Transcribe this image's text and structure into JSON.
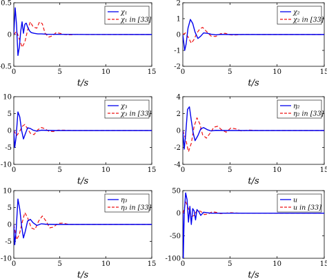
{
  "colors": {
    "proposed": "#0000ee",
    "reference": "#ee1111",
    "axis": "#000000"
  },
  "chart_data": [
    {
      "type": "line",
      "xlabel": "t/s",
      "xlim": [
        0,
        15
      ],
      "ylim": [
        -0.5,
        0.5
      ],
      "xticks": [
        0,
        5,
        10,
        15
      ],
      "yticks": [
        0.5,
        0,
        -0.5
      ],
      "x_tick_labels": [
        "0",
        "5",
        "10",
        "15"
      ],
      "y_tick_labels": [
        "0.5",
        "0",
        "-0.5"
      ],
      "legend_position": "top-right",
      "series": [
        {
          "name": "χ₁",
          "x": [
            0,
            0.15,
            0.3,
            0.45,
            0.6,
            0.75,
            0.9,
            1.05,
            1.2,
            1.35,
            1.5,
            1.7,
            1.9,
            2.2,
            2.6,
            3.0,
            3.6,
            4.5,
            6,
            8,
            15
          ],
          "y": [
            0,
            0.42,
            0.15,
            -0.33,
            -0.2,
            0.05,
            0.2,
            0.02,
            0.16,
            0.18,
            0.12,
            0.06,
            0.03,
            0.02,
            0.01,
            0.01,
            0.005,
            0.003,
            0.002,
            0.001,
            0
          ]
        },
        {
          "name": "χ₁ in [33]",
          "x": [
            0,
            0.3,
            0.6,
            0.9,
            1.2,
            1.5,
            1.8,
            2.1,
            2.5,
            2.8,
            3.1,
            3.4,
            3.8,
            4.2,
            4.6,
            5.0,
            5.5,
            6,
            7,
            8,
            15
          ],
          "y": [
            0,
            0.05,
            -0.07,
            -0.2,
            -0.12,
            0.07,
            0.2,
            0.12,
            0.1,
            0.2,
            0.17,
            0.02,
            -0.04,
            -0.02,
            0.03,
            0.02,
            0.0,
            -0.005,
            0.002,
            0,
            0
          ]
        }
      ]
    },
    {
      "type": "line",
      "xlabel": "t/s",
      "xlim": [
        0,
        15
      ],
      "ylim": [
        -2,
        2
      ],
      "xticks": [
        0,
        5,
        10,
        15
      ],
      "yticks": [
        2,
        1,
        0,
        -1,
        -2
      ],
      "x_tick_labels": [
        "0",
        "5",
        "10",
        "15"
      ],
      "y_tick_labels": [
        "2",
        "1",
        "0",
        "-1",
        "-2"
      ],
      "legend_position": "top-right",
      "series": [
        {
          "name": "χ₂",
          "x": [
            0,
            0.2,
            0.35,
            0.55,
            0.8,
            1.05,
            1.3,
            1.6,
            1.9,
            2.2,
            2.6,
            3.0,
            3.5,
            4.0,
            5,
            6,
            8,
            15
          ],
          "y": [
            0,
            -1.0,
            -0.6,
            0.4,
            0.95,
            0.7,
            0.15,
            -0.25,
            -0.1,
            0.1,
            0.08,
            0.02,
            -0.02,
            0.01,
            0,
            0,
            0,
            0
          ]
        },
        {
          "name": "χ₂ in [33]",
          "x": [
            0,
            0.3,
            0.6,
            0.9,
            1.2,
            1.5,
            1.8,
            2.1,
            2.5,
            3.0,
            3.5,
            4.0,
            4.5,
            5.0,
            5.5,
            6.5,
            8,
            15
          ],
          "y": [
            0,
            0.1,
            -0.2,
            -0.55,
            -0.3,
            0.1,
            0.35,
            0.45,
            0.2,
            -0.1,
            -0.12,
            0.05,
            0.08,
            -0.02,
            -0.03,
            0.01,
            0,
            0
          ]
        }
      ]
    },
    {
      "type": "line",
      "xlabel": "t/s",
      "xlim": [
        0,
        15
      ],
      "ylim": [
        -10,
        10
      ],
      "xticks": [
        0,
        5,
        10,
        15
      ],
      "yticks": [
        10,
        5,
        0,
        -5,
        -10
      ],
      "x_tick_labels": [
        "0",
        "5",
        "10",
        "15"
      ],
      "y_tick_labels": [
        "10",
        "5",
        "0",
        "-5",
        "-10"
      ],
      "legend_position": "top-right",
      "series": [
        {
          "name": "χ₃",
          "x": [
            0,
            0.1,
            0.25,
            0.45,
            0.65,
            0.85,
            1.05,
            1.25,
            1.5,
            1.8,
            2.1,
            2.5,
            3.0,
            3.5,
            4.5,
            6,
            8,
            15
          ],
          "y": [
            0,
            -5.0,
            -2.0,
            5.5,
            4.0,
            0.0,
            -2.5,
            -1.0,
            0.8,
            0.6,
            0.1,
            -0.2,
            0.1,
            0.05,
            0,
            0,
            0,
            0
          ]
        },
        {
          "name": "χ₃ in [33]",
          "x": [
            0,
            0.3,
            0.6,
            0.9,
            1.2,
            1.5,
            1.8,
            2.2,
            2.6,
            3.0,
            3.4,
            3.8,
            4.3,
            4.8,
            5.5,
            6.5,
            8,
            15
          ],
          "y": [
            0,
            -1.5,
            -0.5,
            1.2,
            1.8,
            0.5,
            -0.8,
            -1.2,
            0.2,
            0.9,
            0.5,
            -0.2,
            -0.3,
            0.1,
            0.1,
            0,
            0,
            0
          ]
        }
      ]
    },
    {
      "type": "line",
      "xlabel": "t/s",
      "xlim": [
        0,
        15
      ],
      "ylim": [
        -4,
        4
      ],
      "xticks": [
        0,
        5,
        10,
        15
      ],
      "yticks": [
        4,
        2,
        0,
        -2,
        -4
      ],
      "x_tick_labels": [
        "0",
        "5",
        "10",
        "15"
      ],
      "y_tick_labels": [
        "4",
        "2",
        "0",
        "-2",
        "-4"
      ],
      "legend_position": "top-right",
      "series": [
        {
          "name": "η₂",
          "x": [
            0,
            0.15,
            0.3,
            0.5,
            0.7,
            0.9,
            1.1,
            1.3,
            1.6,
            1.9,
            2.2,
            2.6,
            3.0,
            3.5,
            4.5,
            6,
            8,
            15
          ],
          "y": [
            0,
            -2.2,
            -0.5,
            2.5,
            2.8,
            1.2,
            -0.3,
            -1.2,
            -0.6,
            0.2,
            0.35,
            0.1,
            -0.05,
            0.02,
            0,
            0,
            0,
            0
          ]
        },
        {
          "name": "η₂ in [33]",
          "x": [
            0,
            0.3,
            0.6,
            0.9,
            1.2,
            1.5,
            1.8,
            2.1,
            2.5,
            2.9,
            3.3,
            3.7,
            4.1,
            4.6,
            5.1,
            5.6,
            6.2,
            7,
            8,
            15
          ],
          "y": [
            0,
            -1.0,
            -2.5,
            -1.5,
            0.5,
            1.5,
            0.8,
            -0.5,
            -0.9,
            -0.3,
            0.4,
            0.5,
            0.1,
            -0.2,
            0.3,
            0.2,
            -0.05,
            0.05,
            0,
            0
          ]
        }
      ]
    },
    {
      "type": "line",
      "xlabel": "t/s",
      "xlim": [
        0,
        15
      ],
      "ylim": [
        -10,
        10
      ],
      "xticks": [
        0,
        5,
        10,
        15
      ],
      "yticks": [
        10,
        5,
        0,
        -5,
        -10
      ],
      "x_tick_labels": [
        "0",
        "5",
        "10",
        "15"
      ],
      "y_tick_labels": [
        "10",
        "5",
        "0",
        "-5",
        "-10"
      ],
      "legend_position": "top-right",
      "series": [
        {
          "name": "η₃",
          "x": [
            0,
            0.1,
            0.25,
            0.45,
            0.65,
            0.85,
            1.05,
            1.25,
            1.5,
            1.8,
            2.1,
            2.5,
            3.0,
            3.5,
            4.5,
            6,
            8,
            15
          ],
          "y": [
            0,
            -6.0,
            -2.0,
            7.5,
            4.5,
            -0.5,
            -4.0,
            -2.0,
            1.0,
            1.5,
            0.5,
            -0.3,
            0.2,
            0.05,
            0,
            0,
            0,
            0
          ]
        },
        {
          "name": "η₃ in [33]",
          "x": [
            0,
            0.3,
            0.6,
            0.9,
            1.2,
            1.5,
            1.9,
            2.3,
            2.7,
            3.1,
            3.5,
            3.9,
            4.3,
            4.8,
            5.3,
            6,
            7,
            8,
            15
          ],
          "y": [
            0,
            -4.5,
            -3.0,
            0.5,
            3.5,
            2.0,
            -1.0,
            -1.5,
            1.0,
            2.5,
            1.0,
            -1.0,
            -0.8,
            0.3,
            0.4,
            0,
            0,
            0,
            0
          ]
        }
      ]
    },
    {
      "type": "line",
      "xlabel": "t/s",
      "xlim": [
        0,
        15
      ],
      "ylim": [
        -100,
        50
      ],
      "xticks": [
        0,
        5,
        10,
        15
      ],
      "yticks": [
        50,
        0,
        -50,
        -100
      ],
      "x_tick_labels": [
        "0",
        "5",
        "10",
        "15"
      ],
      "y_tick_labels": [
        "50",
        "0",
        "-50",
        "-100"
      ],
      "legend_position": "top-right",
      "series": [
        {
          "name": "u",
          "x": [
            0,
            0.05,
            0.15,
            0.3,
            0.45,
            0.6,
            0.75,
            0.9,
            1.05,
            1.2,
            1.35,
            1.5,
            1.7,
            1.9,
            2.2,
            2.6,
            3.0,
            3.5,
            4.5,
            6,
            8,
            15
          ],
          "y": [
            0,
            -100,
            0,
            45,
            30,
            -20,
            15,
            -25,
            10,
            5,
            -15,
            8,
            3,
            -5,
            2,
            1,
            0,
            0,
            0,
            0,
            0,
            0
          ]
        },
        {
          "name": "u in [33]",
          "x": [
            0,
            0.1,
            0.3,
            0.6,
            0.9,
            1.2,
            1.5,
            1.9,
            2.3,
            2.7,
            3.1,
            3.5,
            4.0,
            4.5,
            5.0,
            6,
            8,
            15
          ],
          "y": [
            0,
            5,
            25,
            10,
            -8,
            -5,
            6,
            4,
            -3,
            -2,
            3,
            2,
            -1,
            0,
            1,
            0,
            0,
            0
          ]
        }
      ]
    }
  ]
}
